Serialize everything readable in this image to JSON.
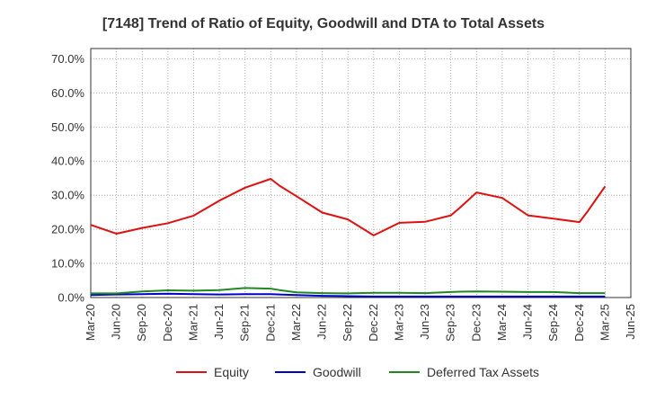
{
  "chart_data": {
    "type": "line",
    "title": "[7148]  Trend of Ratio of Equity, Goodwill and DTA to Total Assets",
    "xlabel": "",
    "ylabel": "",
    "ylim": [
      0,
      0.73
    ],
    "y_ticks": [
      0,
      0.1,
      0.2,
      0.3,
      0.4,
      0.5,
      0.6,
      0.7
    ],
    "y_tick_labels": [
      "0.0%",
      "10.0%",
      "20.0%",
      "30.0%",
      "40.0%",
      "50.0%",
      "60.0%",
      "70.0%"
    ],
    "x_tick_labels": [
      "Mar-20",
      "Jun-20",
      "Sep-20",
      "Dec-20",
      "Mar-21",
      "Jun-21",
      "Sep-21",
      "Dec-21",
      "Mar-22",
      "Jun-22",
      "Sep-22",
      "Dec-22",
      "Mar-23",
      "Jun-23",
      "Sep-23",
      "Dec-23",
      "Mar-24",
      "Jun-24",
      "Sep-24",
      "Dec-24",
      "Mar-25",
      "Jun-25"
    ],
    "x": [
      "Mar-20",
      "Jun-20",
      "Sep-20",
      "Dec-20",
      "Mar-21",
      "Jun-21",
      "Sep-21",
      "Dec-21",
      "Jan-22",
      "Mar-22",
      "Jun-22",
      "Sep-22",
      "Dec-22",
      "Mar-23",
      "Jun-23",
      "Sep-23",
      "Oct-23",
      "Dec-23",
      "Mar-24",
      "Jun-24",
      "Sep-24",
      "Dec-24",
      "Jan-25",
      "Feb-25",
      "Mar-25"
    ],
    "grid": true,
    "legend_position": "bottom",
    "series": [
      {
        "name": "Equity",
        "color": "#dd1111",
        "values": [
          0.213,
          0.187,
          0.204,
          0.218,
          0.24,
          0.284,
          0.322,
          0.348,
          0.328,
          0.297,
          0.249,
          0.229,
          0.182,
          0.219,
          0.222,
          0.241,
          0.262,
          0.308,
          0.292,
          0.241,
          0.231,
          0.221,
          0.254,
          0.29,
          0.326
        ]
      },
      {
        "name": "Goodwill",
        "color": "#0000cc",
        "values": [
          0.007,
          0.009,
          0.01,
          0.011,
          0.01,
          0.009,
          0.01,
          0.01,
          0.009,
          0.007,
          0.005,
          0.004,
          0.003,
          0.003,
          0.003,
          0.003,
          0.003,
          0.003,
          0.003,
          0.003,
          0.003,
          0.003,
          0.003,
          0.003,
          0.003
        ]
      },
      {
        "name": "Deferred Tax Assets",
        "color": "#228822",
        "values": [
          0.012,
          0.012,
          0.018,
          0.021,
          0.02,
          0.022,
          0.028,
          0.026,
          0.022,
          0.015,
          0.013,
          0.012,
          0.014,
          0.014,
          0.013,
          0.016,
          0.017,
          0.018,
          0.017,
          0.016,
          0.016,
          0.013,
          0.013,
          0.013,
          0.013
        ]
      }
    ]
  }
}
